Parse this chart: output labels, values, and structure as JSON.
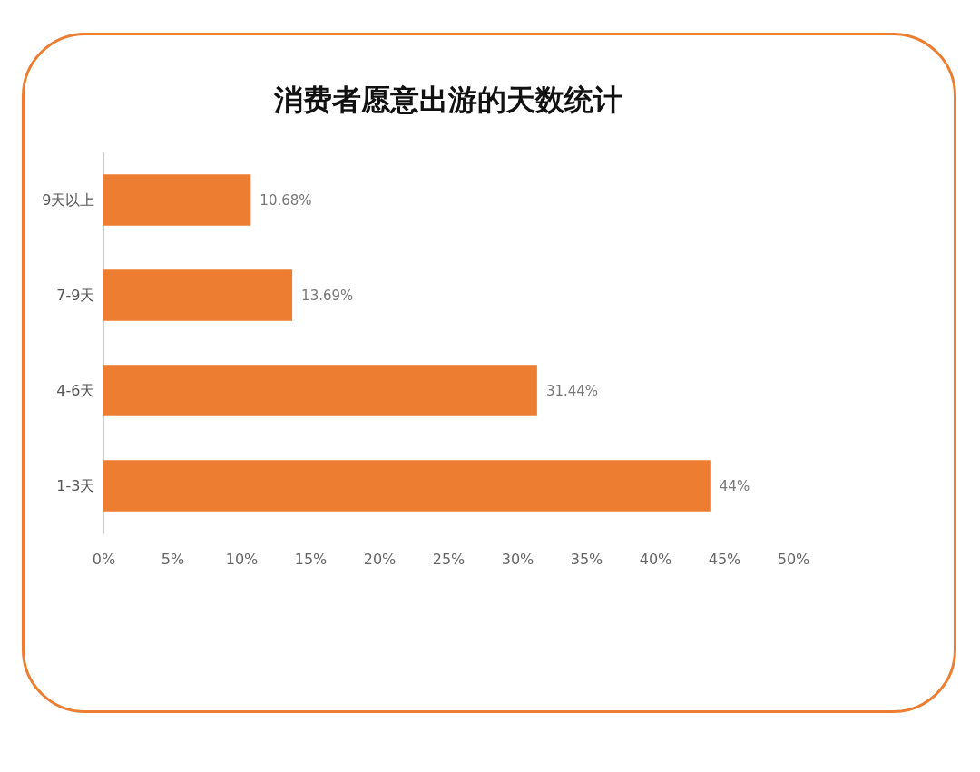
{
  "chart_data": {
    "type": "bar",
    "orientation": "horizontal",
    "title": "消费者愿意出游的天数统计",
    "categories": [
      "9天以上",
      "7-9天",
      "4-6天",
      "1-3天"
    ],
    "values": [
      10.68,
      13.69,
      31.44,
      44
    ],
    "value_labels": [
      "10.68%",
      "13.69%",
      "31.44%",
      "44%"
    ],
    "color": "#ed7d31",
    "xlim": [
      0,
      50
    ],
    "xticks": [
      {
        "value": 0,
        "label": "0%"
      },
      {
        "value": 5,
        "label": "5%"
      },
      {
        "value": 10,
        "label": "10%"
      },
      {
        "value": 15,
        "label": "15%"
      },
      {
        "value": 20,
        "label": "20%"
      },
      {
        "value": 25,
        "label": "25%"
      },
      {
        "value": 30,
        "label": "30%"
      },
      {
        "value": 35,
        "label": "35%"
      },
      {
        "value": 40,
        "label": "40%"
      },
      {
        "value": 45,
        "label": "45%"
      },
      {
        "value": 50,
        "label": "50%"
      }
    ],
    "grid": false
  }
}
